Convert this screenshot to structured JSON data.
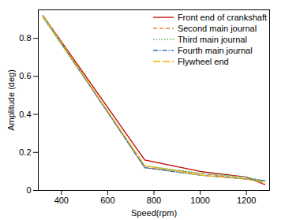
{
  "chart_data": {
    "type": "line",
    "x_label": "Speed(rpm)",
    "y_label": "Amplitude (deg)",
    "x": [
      320,
      760,
      1000,
      1200,
      1280
    ],
    "series": [
      {
        "name": "Front end of crankshaft",
        "color": "#c00000",
        "line_style": "solid",
        "values": [
          0.92,
          0.16,
          0.1,
          0.07,
          0.03
        ]
      },
      {
        "name": "Second main journal",
        "color": "#f08030",
        "line_style": "dashed",
        "values": [
          0.92,
          0.12,
          0.09,
          0.06,
          0.05
        ]
      },
      {
        "name": "Third main journal",
        "color": "#5cb85c",
        "line_style": "dotted",
        "values": [
          0.91,
          0.13,
          0.09,
          0.07,
          0.05
        ]
      },
      {
        "name": "Fourth main journal",
        "color": "#3070c0",
        "line_style": "dashdot",
        "values": [
          0.92,
          0.12,
          0.08,
          0.06,
          0.05
        ]
      },
      {
        "name": "Flywheel end",
        "color": "#f0b000",
        "line_style": "longdash",
        "values": [
          0.92,
          0.13,
          0.08,
          0.06,
          0.04
        ]
      }
    ],
    "xlim": [
      300,
      1300
    ],
    "xticks": [
      400,
      600,
      800,
      1000,
      1200
    ],
    "ylim": [
      0,
      0.95
    ],
    "yticks": [
      0,
      0.2,
      0.4,
      0.6,
      0.8
    ],
    "grid": false,
    "legend": "top-right"
  }
}
